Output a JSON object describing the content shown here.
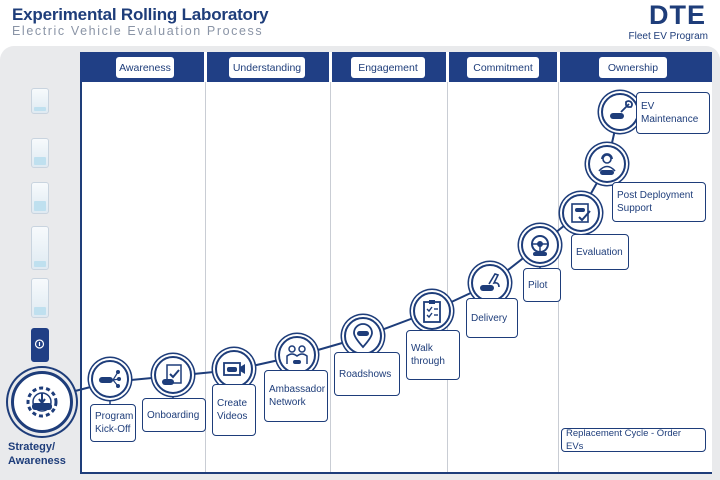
{
  "header": {
    "title": "Experimental Rolling Laboratory",
    "subtitle": "Electric Vehicle Evaluation Process",
    "logo": "DTE",
    "logo_sub": "Fleet EV Program"
  },
  "stages": [
    "Awareness",
    "Understanding",
    "Engagement",
    "Commitment",
    "Ownership"
  ],
  "start": {
    "label_line1": "Strategy/",
    "label_line2": "Awareness",
    "icon": "gear-car-icon"
  },
  "steps": [
    {
      "line1": "Program",
      "line2": "Kick-Off",
      "icon": "network-car-icon"
    },
    {
      "line1": "Onboarding",
      "line2": "",
      "icon": "checklist-car-icon"
    },
    {
      "line1": "Create",
      "line2": "Videos",
      "icon": "video-car-icon"
    },
    {
      "line1": "Ambassador",
      "line2": "Network",
      "icon": "people-icon"
    },
    {
      "line1": "Roadshows",
      "line2": "",
      "icon": "map-pin-car-icon"
    },
    {
      "line1": "Walk",
      "line2": "through",
      "icon": "clipboard-icon"
    },
    {
      "line1": "Delivery",
      "line2": "",
      "icon": "hand-car-icon"
    },
    {
      "line1": "Pilot",
      "line2": "",
      "icon": "steering-wheel-icon"
    },
    {
      "line1": "Evaluation",
      "line2": "",
      "icon": "form-check-icon"
    },
    {
      "line1": "Post Deployment",
      "line2": "Support",
      "icon": "support-agent-icon"
    },
    {
      "line1": "EV",
      "line2": "Maintenance",
      "icon": "wrench-car-icon"
    }
  ],
  "replacement": "Replacement Cycle - Order EVs",
  "colors": {
    "navy": "#1e3d7a",
    "bar": "#203f85",
    "panel": "#e9eaec",
    "battery": "#bfe0ef"
  }
}
